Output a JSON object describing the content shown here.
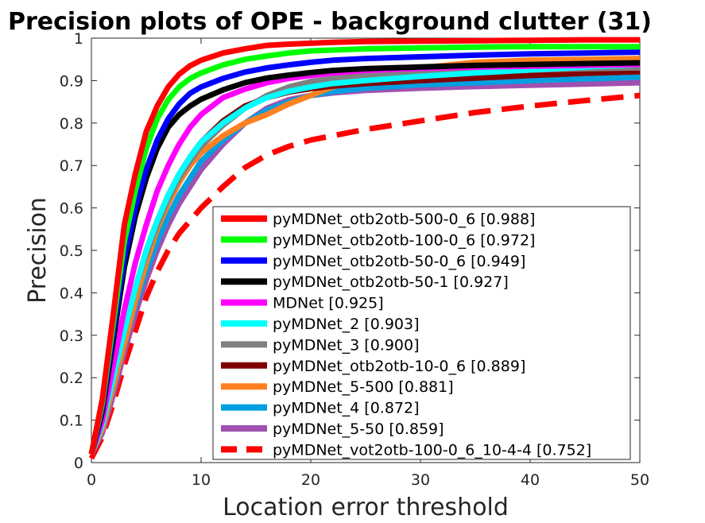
{
  "chart_data": {
    "type": "line",
    "title": "Precision plots of OPE - background clutter (31)",
    "xlabel": "Location error threshold",
    "ylabel": "Precision",
    "xlim": [
      0,
      50
    ],
    "ylim": [
      0,
      1
    ],
    "xticks": [
      "0",
      "10",
      "20",
      "30",
      "40",
      "50"
    ],
    "yticks": [
      "0",
      "0.1",
      "0.2",
      "0.3",
      "0.4",
      "0.5",
      "0.6",
      "0.7",
      "0.8",
      "0.9",
      "1"
    ],
    "grid": false,
    "legend_position": "bottom-right",
    "x": [
      0,
      1,
      2,
      3,
      4,
      5,
      6,
      7,
      8,
      9,
      10,
      12,
      14,
      16,
      18,
      20,
      22,
      25,
      30,
      35,
      40,
      45,
      50
    ],
    "series": [
      {
        "name": "pyMDNet_otb2otb-500-0_6 [0.988]",
        "color": "#ff0000",
        "style": "solid",
        "values": [
          0.02,
          0.15,
          0.35,
          0.56,
          0.68,
          0.78,
          0.84,
          0.885,
          0.915,
          0.935,
          0.948,
          0.965,
          0.975,
          0.983,
          0.986,
          0.988,
          0.99,
          0.992,
          0.993,
          0.994,
          0.995,
          0.996,
          0.996
        ]
      },
      {
        "name": "pyMDNet_otb2otb-100-0_6 [0.972]",
        "color": "#00ff00",
        "style": "solid",
        "values": [
          0.02,
          0.14,
          0.33,
          0.52,
          0.64,
          0.74,
          0.81,
          0.855,
          0.885,
          0.905,
          0.918,
          0.937,
          0.95,
          0.958,
          0.965,
          0.97,
          0.972,
          0.975,
          0.977,
          0.979,
          0.98,
          0.98,
          0.98
        ]
      },
      {
        "name": "pyMDNet_otb2otb-50-0_6 [0.949]",
        "color": "#0000ff",
        "style": "solid",
        "values": [
          0.02,
          0.13,
          0.31,
          0.48,
          0.6,
          0.69,
          0.76,
          0.81,
          0.845,
          0.87,
          0.885,
          0.905,
          0.92,
          0.93,
          0.937,
          0.943,
          0.948,
          0.952,
          0.956,
          0.96,
          0.963,
          0.965,
          0.967
        ]
      },
      {
        "name": "pyMDNet_otb2otb-50-1 [0.927]",
        "color": "#000000",
        "style": "solid",
        "values": [
          0.02,
          0.12,
          0.29,
          0.46,
          0.58,
          0.67,
          0.74,
          0.79,
          0.82,
          0.84,
          0.856,
          0.878,
          0.895,
          0.906,
          0.913,
          0.919,
          0.924,
          0.928,
          0.932,
          0.936,
          0.938,
          0.94,
          0.942
        ]
      },
      {
        "name": "MDNet [0.925]",
        "color": "#ff00ff",
        "style": "solid",
        "values": [
          0.02,
          0.1,
          0.23,
          0.36,
          0.47,
          0.56,
          0.64,
          0.7,
          0.75,
          0.79,
          0.82,
          0.86,
          0.88,
          0.895,
          0.905,
          0.912,
          0.918,
          0.924,
          0.929,
          0.932,
          0.934,
          0.936,
          0.938
        ]
      },
      {
        "name": "pyMDNet_2 [0.903]",
        "color": "#00ffff",
        "style": "solid",
        "values": [
          0.02,
          0.09,
          0.2,
          0.31,
          0.41,
          0.5,
          0.57,
          0.63,
          0.68,
          0.72,
          0.755,
          0.8,
          0.835,
          0.86,
          0.875,
          0.885,
          0.893,
          0.9,
          0.91,
          0.918,
          0.925,
          0.932,
          0.938
        ]
      },
      {
        "name": "pyMDNet_3 [0.900]",
        "color": "#808080",
        "style": "solid",
        "values": [
          0.02,
          0.09,
          0.2,
          0.31,
          0.41,
          0.49,
          0.56,
          0.62,
          0.67,
          0.71,
          0.745,
          0.795,
          0.835,
          0.865,
          0.885,
          0.898,
          0.905,
          0.912,
          0.918,
          0.922,
          0.925,
          0.928,
          0.93
        ]
      },
      {
        "name": "pyMDNet_otb2otb-10-0_6 [0.889]",
        "color": "#800000",
        "style": "solid",
        "values": [
          0.02,
          0.09,
          0.2,
          0.31,
          0.41,
          0.5,
          0.57,
          0.63,
          0.68,
          0.72,
          0.755,
          0.805,
          0.84,
          0.86,
          0.873,
          0.881,
          0.887,
          0.893,
          0.9,
          0.906,
          0.912,
          0.917,
          0.921
        ]
      },
      {
        "name": "pyMDNet_5-500 [0.881]",
        "color": "#ff8020",
        "style": "solid",
        "values": [
          0.02,
          0.08,
          0.18,
          0.28,
          0.38,
          0.47,
          0.55,
          0.61,
          0.66,
          0.7,
          0.73,
          0.77,
          0.8,
          0.82,
          0.845,
          0.865,
          0.885,
          0.905,
          0.93,
          0.943,
          0.948,
          0.95,
          0.952
        ]
      },
      {
        "name": "pyMDNet_4 [0.872]",
        "color": "#00a0e0",
        "style": "solid",
        "values": [
          0.02,
          0.08,
          0.18,
          0.28,
          0.37,
          0.45,
          0.52,
          0.58,
          0.63,
          0.67,
          0.71,
          0.76,
          0.8,
          0.83,
          0.85,
          0.865,
          0.874,
          0.882,
          0.89,
          0.895,
          0.9,
          0.904,
          0.908
        ]
      },
      {
        "name": "pyMDNet_5-50 [0.859]",
        "color": "#a050b0",
        "style": "solid",
        "values": [
          0.02,
          0.07,
          0.16,
          0.26,
          0.35,
          0.43,
          0.5,
          0.56,
          0.61,
          0.65,
          0.69,
          0.75,
          0.8,
          0.835,
          0.855,
          0.865,
          0.871,
          0.877,
          0.882,
          0.886,
          0.889,
          0.892,
          0.895
        ]
      },
      {
        "name": "pyMDNet_vot2otb-100-0_6_10-4-4 [0.752]",
        "color": "#ff0000",
        "style": "dashed",
        "values": [
          0.01,
          0.06,
          0.14,
          0.23,
          0.31,
          0.39,
          0.45,
          0.5,
          0.54,
          0.57,
          0.6,
          0.65,
          0.695,
          0.725,
          0.745,
          0.76,
          0.77,
          0.785,
          0.805,
          0.825,
          0.84,
          0.853,
          0.865
        ]
      }
    ]
  }
}
